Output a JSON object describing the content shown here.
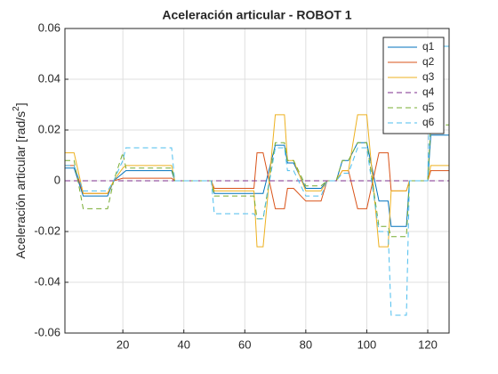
{
  "chart_data": {
    "type": "line",
    "title": "Aceleración articular - ROBOT 1",
    "ylabel": {
      "text": "Aceleración articular [rad/s",
      "superscript": "2",
      "suffix": "]"
    },
    "x": [
      1,
      4,
      7,
      15,
      17,
      20,
      21,
      36,
      37,
      49,
      50,
      63,
      64,
      66,
      70,
      73,
      74,
      76,
      80,
      85,
      87,
      90,
      92,
      94,
      97,
      100,
      104,
      107,
      108,
      113,
      114,
      120,
      121,
      127
    ],
    "series": [
      {
        "name": "q1",
        "color": "#0072BD",
        "dashed": false,
        "values": [
          0.005,
          0.005,
          -0.006,
          -0.006,
          0,
          0.003,
          0.004,
          0.004,
          0,
          0,
          -0.005,
          -0.005,
          -0.005,
          -0.005,
          0.014,
          0.014,
          0.007,
          0.007,
          -0.003,
          -0.003,
          0,
          0,
          0.008,
          0.008,
          0.015,
          0.015,
          -0.008,
          -0.008,
          -0.018,
          -0.018,
          0,
          0,
          0.018,
          0.018
        ]
      },
      {
        "name": "q2",
        "color": "#D95319",
        "dashed": false,
        "values": [
          0.006,
          0.006,
          -0.005,
          -0.005,
          0,
          0.001,
          0.001,
          0.001,
          0,
          0,
          -0.003,
          -0.003,
          0.011,
          0.011,
          -0.011,
          -0.011,
          -0.003,
          -0.003,
          -0.008,
          -0.008,
          0,
          0,
          0.004,
          0.004,
          -0.011,
          -0.011,
          0.011,
          0.011,
          -0.004,
          -0.004,
          0,
          0,
          0.004,
          0.004
        ]
      },
      {
        "name": "q3",
        "color": "#EDB120",
        "dashed": false,
        "values": [
          0.011,
          0.011,
          -0.005,
          -0.005,
          0,
          0.005,
          0.006,
          0.006,
          0,
          0,
          -0.004,
          -0.004,
          -0.026,
          -0.026,
          0.026,
          0.026,
          0.008,
          0.008,
          -0.004,
          -0.004,
          0,
          0,
          0.004,
          0.004,
          0.026,
          0.026,
          -0.026,
          -0.026,
          -0.004,
          -0.004,
          0,
          0,
          0.006,
          0.006
        ]
      },
      {
        "name": "q4",
        "color": "#7E2F8E",
        "dashed": true,
        "values": [
          0,
          0,
          0,
          0,
          0,
          0,
          0,
          0,
          0,
          0,
          0,
          0,
          0,
          0,
          0,
          0,
          0,
          0,
          0,
          0,
          0,
          0,
          0,
          0,
          0,
          0,
          0,
          0,
          0,
          0,
          0,
          0,
          0,
          0
        ]
      },
      {
        "name": "q5",
        "color": "#77AC30",
        "dashed": true,
        "values": [
          0.008,
          0.008,
          -0.011,
          -0.011,
          0,
          0.011,
          0.005,
          0.005,
          0,
          0,
          -0.006,
          -0.006,
          -0.015,
          -0.015,
          0.015,
          0.015,
          0.008,
          0.008,
          -0.002,
          -0.002,
          0,
          0,
          0.008,
          0.008,
          0.015,
          0.015,
          -0.018,
          -0.018,
          -0.022,
          -0.022,
          0,
          0,
          0.022,
          0.022
        ]
      },
      {
        "name": "q6",
        "color": "#4DBEEE",
        "dashed": true,
        "values": [
          0.006,
          0.006,
          -0.004,
          -0.004,
          0,
          0.008,
          0.013,
          0.013,
          0,
          0,
          -0.013,
          -0.013,
          -0.015,
          -0.015,
          0.013,
          0.013,
          0.004,
          0.004,
          -0.006,
          -0.006,
          0,
          0,
          0.003,
          0.003,
          0.013,
          0.013,
          -0.02,
          -0.02,
          -0.053,
          -0.053,
          0,
          0,
          0.053,
          0.053
        ]
      }
    ],
    "xlim": [
      1,
      127
    ],
    "xticks": [
      20,
      40,
      60,
      80,
      100,
      120
    ],
    "ylim": [
      -0.06,
      0.06
    ],
    "yticks": [
      -0.06,
      -0.04,
      -0.02,
      0,
      0.02,
      0.04,
      0.06
    ],
    "grid": true,
    "legend": "northeast"
  }
}
